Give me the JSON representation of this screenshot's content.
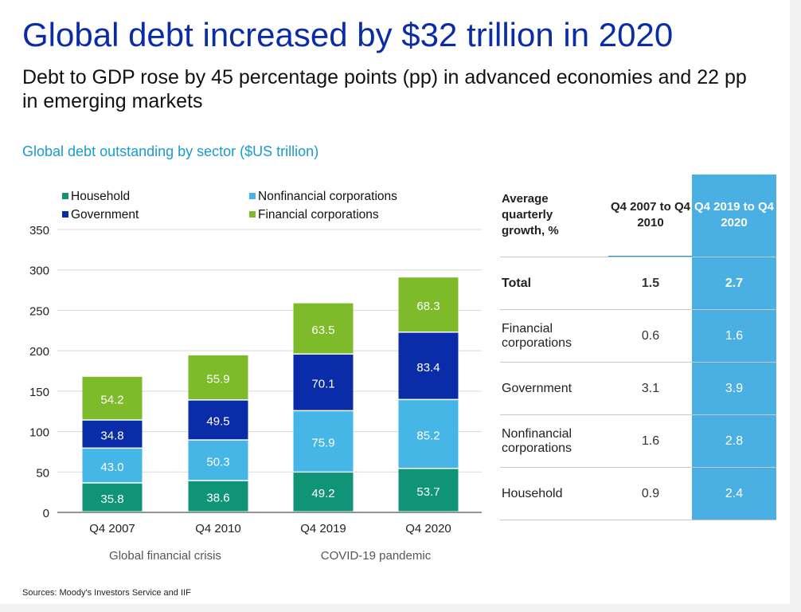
{
  "title": "Global debt increased by $32 trillion in 2020",
  "subtitle": "Debt to GDP rose by 45 percentage points (pp) in advanced economies and 22 pp in emerging markets",
  "source": "Sources: Moody's Investors Service and IIF",
  "colors": {
    "household": "#0f9478",
    "nonfinancial": "#45b6e6",
    "government": "#0a2ca8",
    "financial": "#7dbb2a",
    "title": "#0a2ca8",
    "accent": "#1a9bd0",
    "highlight_col": "#4ab0e4"
  },
  "chart_data": {
    "type": "bar",
    "stacked": true,
    "title": "Global debt outstanding by sector ($US trillion)",
    "categories": [
      "Q4 2007",
      "Q4 2010",
      "Q4 2019",
      "Q4 2020"
    ],
    "series": [
      {
        "name": "Household",
        "values": [
          35.8,
          38.6,
          49.2,
          53.7
        ],
        "labels": [
          "35.8",
          "38.6",
          "49.2",
          "53.7"
        ]
      },
      {
        "name": "Nonfinancial corporations",
        "values": [
          43.0,
          50.3,
          75.9,
          85.2
        ],
        "labels": [
          "43.0",
          "50.3",
          "75.9",
          "85.2"
        ]
      },
      {
        "name": "Government",
        "values": [
          34.8,
          49.5,
          70.1,
          83.4
        ],
        "labels": [
          "34.8",
          "49.5",
          "70.1",
          "83.4"
        ]
      },
      {
        "name": "Financial corporations",
        "values": [
          54.2,
          55.9,
          63.5,
          68.3
        ],
        "labels": [
          "54.2",
          "55.9",
          "63.5",
          "68.3"
        ]
      }
    ],
    "legend_order": [
      "Household",
      "Nonfinancial corporations",
      "Government",
      "Financial corporations"
    ],
    "ylim": [
      0,
      350
    ],
    "yticks": [
      0,
      50,
      100,
      150,
      200,
      250,
      300,
      350
    ],
    "grid": true,
    "annotations": [
      {
        "text": "Global financial crisis",
        "categories": [
          "Q4 2007",
          "Q4 2010"
        ]
      },
      {
        "text": "COVID-19 pandemic",
        "categories": [
          "Q4 2019",
          "Q4 2020"
        ]
      }
    ]
  },
  "table": {
    "header": {
      "label": "Average quarterly growth, %",
      "col1": "Q4 2007 to Q4 2010",
      "col2": "Q4 2019 to Q4 2020"
    },
    "rows": [
      {
        "label": "Total",
        "v1": "1.5",
        "v2": "2.7",
        "bold": true
      },
      {
        "label": "Financial corporations",
        "v1": "0.6",
        "v2": "1.6"
      },
      {
        "label": "Government",
        "v1": "3.1",
        "v2": "3.9"
      },
      {
        "label": "Nonfinancial corporations",
        "v1": "1.6",
        "v2": "2.8"
      },
      {
        "label": "Household",
        "v1": "0.9",
        "v2": "2.4"
      }
    ]
  }
}
